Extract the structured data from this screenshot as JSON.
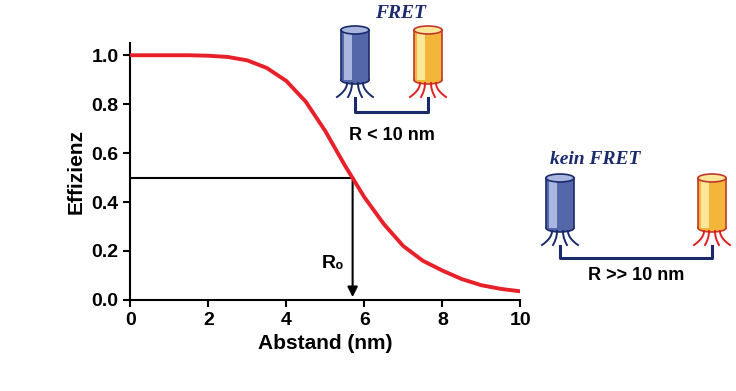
{
  "chart_data": {
    "type": "line",
    "x_label": "Abstand (nm)",
    "y_label": "Effizienz",
    "x": [
      0,
      0.5,
      1,
      1.5,
      2,
      2.5,
      3,
      3.5,
      4,
      4.5,
      5,
      5.5,
      6,
      6.5,
      7,
      7.5,
      8,
      8.5,
      9,
      9.5,
      10
    ],
    "series": [
      {
        "color": "#e8202a",
        "values": [
          1.0,
          1.0,
          1.0,
          1.0,
          0.998,
          0.993,
          0.979,
          0.948,
          0.895,
          0.81,
          0.69,
          0.55,
          0.42,
          0.31,
          0.22,
          0.16,
          0.12,
          0.085,
          0.06,
          0.045,
          0.035
        ]
      }
    ],
    "xlim": [
      0,
      10
    ],
    "xticks": [
      0,
      2,
      4,
      6,
      8,
      10
    ],
    "ylim": [
      0,
      1.05
    ],
    "yticks": [
      {
        "value": 0,
        "label": "0.0"
      },
      {
        "value": 0.2,
        "label": "0.2"
      },
      {
        "value": 0.4,
        "label": "0.4"
      },
      {
        "value": 0.6,
        "label": "0.6"
      },
      {
        "value": 0.8,
        "label": "0.8"
      },
      {
        "value": 1.0,
        "label": "1.0"
      }
    ],
    "reference": {
      "x": 5.7,
      "y": 0.5,
      "label": "R₀"
    }
  },
  "diagrams": [
    {
      "title": "FRET",
      "distance": "R < 10 nm"
    },
    {
      "title": "kein FRET",
      "distance": "R >> 10 nm"
    }
  ]
}
